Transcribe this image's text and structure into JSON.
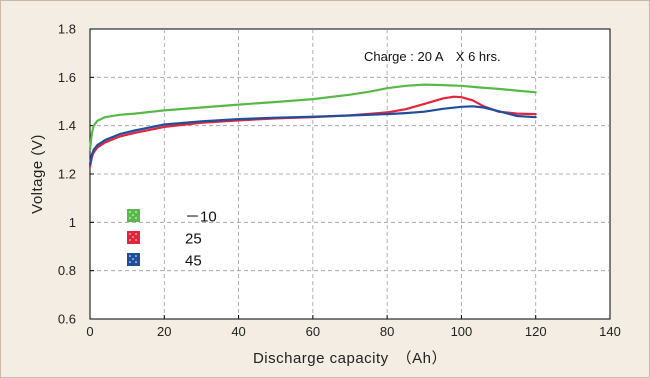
{
  "chart_data": {
    "type": "line",
    "title": "",
    "xlabel": "Discharge capacity　（Ah）",
    "ylabel": "Voltage (V)",
    "xlim": [
      0,
      140
    ],
    "ylim": [
      0.6,
      1.8
    ],
    "x_ticks": [
      0,
      20,
      40,
      60,
      80,
      100,
      120,
      140
    ],
    "y_ticks": [
      0.6,
      0.8,
      1,
      1.2,
      1.4,
      1.6,
      1.8
    ],
    "grid": true,
    "legend_placement": "lower-left",
    "annotation": "Charge : 20 A　X 6 hrs.",
    "series": [
      {
        "name": "－10",
        "color": "#59b84a",
        "x": [
          0,
          0.5,
          1,
          2,
          4,
          8,
          12,
          20,
          30,
          40,
          50,
          60,
          70,
          75,
          80,
          85,
          90,
          95,
          100,
          105,
          110,
          115,
          120
        ],
        "y": [
          1.3,
          1.37,
          1.4,
          1.42,
          1.435,
          1.445,
          1.45,
          1.463,
          1.475,
          1.487,
          1.498,
          1.51,
          1.528,
          1.54,
          1.555,
          1.565,
          1.57,
          1.568,
          1.565,
          1.558,
          1.552,
          1.545,
          1.538
        ]
      },
      {
        "name": "25",
        "color": "#e3243b",
        "x": [
          0,
          0.5,
          1,
          2,
          4,
          8,
          12,
          20,
          30,
          40,
          50,
          60,
          70,
          80,
          85,
          90,
          95,
          98,
          100,
          103,
          106,
          110,
          115,
          120
        ],
        "y": [
          1.23,
          1.27,
          1.29,
          1.31,
          1.33,
          1.355,
          1.37,
          1.395,
          1.412,
          1.422,
          1.43,
          1.435,
          1.443,
          1.455,
          1.468,
          1.49,
          1.513,
          1.52,
          1.518,
          1.505,
          1.48,
          1.458,
          1.45,
          1.448
        ]
      },
      {
        "name": "45",
        "color": "#1f4f9c",
        "x": [
          0,
          0.5,
          1,
          2,
          4,
          8,
          12,
          20,
          30,
          40,
          50,
          60,
          70,
          80,
          85,
          90,
          95,
          100,
          103,
          106,
          110,
          115,
          120
        ],
        "y": [
          1.24,
          1.28,
          1.3,
          1.32,
          1.34,
          1.365,
          1.38,
          1.405,
          1.418,
          1.427,
          1.433,
          1.437,
          1.442,
          1.448,
          1.452,
          1.458,
          1.47,
          1.478,
          1.48,
          1.475,
          1.46,
          1.44,
          1.435
        ]
      }
    ]
  }
}
